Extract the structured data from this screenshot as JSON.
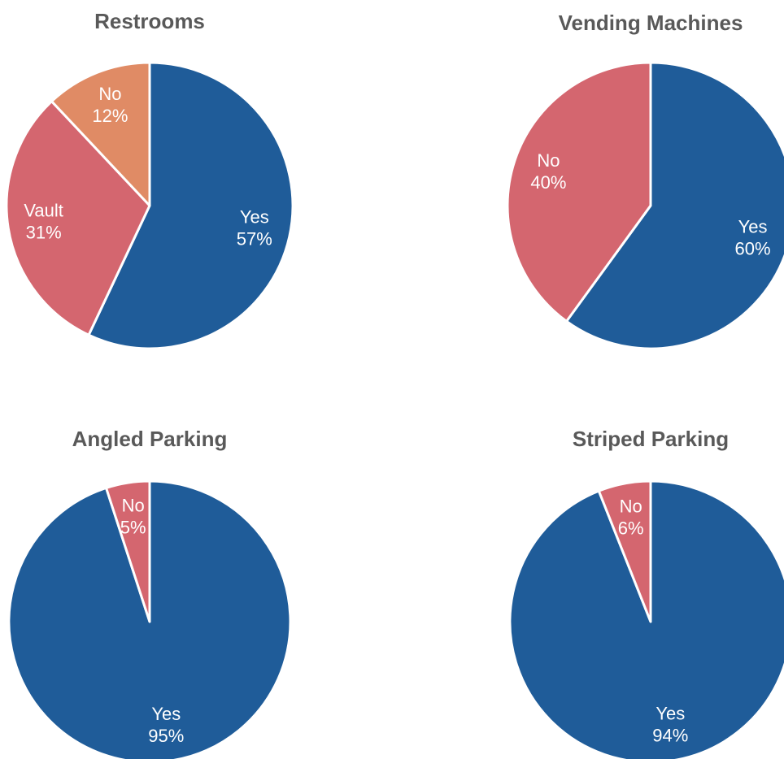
{
  "chart_data": [
    {
      "type": "pie",
      "title": "Restrooms",
      "categories": [
        "Yes",
        "Vault",
        "No"
      ],
      "values": [
        57,
        31,
        12
      ],
      "value_labels": [
        "57%",
        "31%",
        "12%"
      ],
      "colors": [
        "#1f5c99",
        "#d4666f",
        "#e08b65"
      ]
    },
    {
      "type": "pie",
      "title": "Vending Machines",
      "categories": [
        "Yes",
        "No"
      ],
      "values": [
        60,
        40
      ],
      "value_labels": [
        "60%",
        "40%"
      ],
      "colors": [
        "#1f5c99",
        "#d4666f"
      ]
    },
    {
      "type": "pie",
      "title": "Angled Parking",
      "categories": [
        "Yes",
        "No"
      ],
      "values": [
        95,
        5
      ],
      "value_labels": [
        "95%",
        "5%"
      ],
      "colors": [
        "#1f5c99",
        "#d4666f"
      ]
    },
    {
      "type": "pie",
      "title": "Striped Parking",
      "categories": [
        "Yes",
        "No"
      ],
      "values": [
        94,
        6
      ],
      "value_labels": [
        "94%",
        "6%"
      ],
      "colors": [
        "#1f5c99",
        "#d4666f"
      ]
    }
  ]
}
